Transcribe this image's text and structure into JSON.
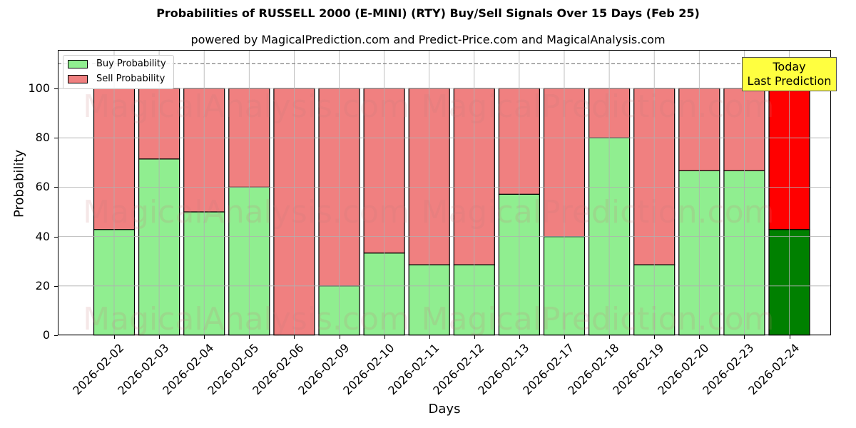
{
  "header": {
    "title": "Probabilities of RUSSELL 2000 (E-MINI) (RTY) Buy/Sell Signals Over 15 Days (Feb 25)",
    "subtitle": "powered by MagicalPrediction.com and Predict-Price.com and MagicalAnalysis.com"
  },
  "axes": {
    "xlabel": "Days",
    "ylabel": "Probability",
    "yticks": [
      "0",
      "20",
      "40",
      "60",
      "80",
      "100"
    ]
  },
  "legend": {
    "buy_label": "Buy Probability",
    "sell_label": "Sell Probability"
  },
  "annotation": {
    "line1": "Today",
    "line2": "Last Prediction"
  },
  "colors": {
    "buy": "#90ee90",
    "sell": "#f08080",
    "today_buy": "#008000",
    "today_sell": "#ff0000",
    "annotation_bg": "#ffff40"
  },
  "chart_data": {
    "type": "bar",
    "stacked": true,
    "title": "Probabilities of RUSSELL 2000 (E-MINI) (RTY) Buy/Sell Signals Over 15 Days (Feb 25)",
    "subtitle": "powered by MagicalPrediction.com and Predict-Price.com and MagicalAnalysis.com",
    "xlabel": "Days",
    "ylabel": "Probability",
    "ylim": [
      0,
      115
    ],
    "yticks": [
      0,
      20,
      40,
      60,
      80,
      100
    ],
    "grid": true,
    "legend_position": "upper left",
    "reference_line": {
      "y": 110,
      "style": "dashed",
      "color": "#808080"
    },
    "categories": [
      "2026-02-02",
      "2026-02-03",
      "2026-02-04",
      "2026-02-05",
      "2026-02-06",
      "2026-02-09",
      "2026-02-10",
      "2026-02-11",
      "2026-02-12",
      "2026-02-13",
      "2026-02-17",
      "2026-02-18",
      "2026-02-19",
      "2026-02-20",
      "2026-02-23",
      "2026-02-24"
    ],
    "series": [
      {
        "name": "Buy Probability",
        "values": [
          42.86,
          71.43,
          50.0,
          60.0,
          0.0,
          20.0,
          33.33,
          28.57,
          28.57,
          57.14,
          40.0,
          80.0,
          28.57,
          66.67,
          66.67,
          42.86
        ]
      },
      {
        "name": "Sell Probability",
        "values": [
          57.14,
          28.57,
          50.0,
          40.0,
          100.0,
          80.0,
          66.67,
          71.43,
          71.43,
          42.86,
          60.0,
          20.0,
          71.43,
          33.33,
          33.33,
          57.14
        ]
      }
    ],
    "annotations": [
      {
        "text": "Today\nLast Prediction",
        "x": "2026-02-24"
      }
    ],
    "watermarks": [
      "MagicalAnalysis.com",
      "MagicalPrediction.com"
    ]
  }
}
